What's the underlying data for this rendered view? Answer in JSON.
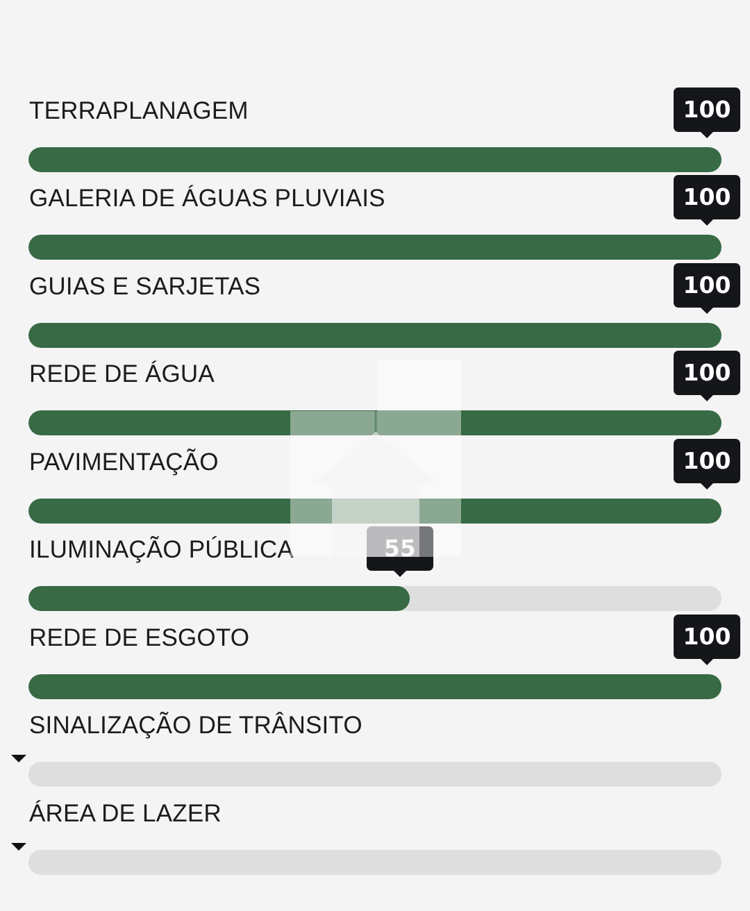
{
  "items": [
    {
      "label": "TERRAPLANAGEM",
      "value": 100,
      "value_text": "100"
    },
    {
      "label": "GALERIA DE ÁGUAS PLUVIAIS",
      "value": 100,
      "value_text": "100"
    },
    {
      "label": "GUIAS E SARJETAS",
      "value": 100,
      "value_text": "100"
    },
    {
      "label": "REDE DE ÁGUA",
      "value": 100,
      "value_text": "100"
    },
    {
      "label": "PAVIMENTAÇÃO",
      "value": 100,
      "value_text": "100"
    },
    {
      "label": "ILUMINAÇÃO PÚBLICA",
      "value": 55,
      "value_text": "55"
    },
    {
      "label": "REDE DE ESGOTO",
      "value": 100,
      "value_text": "100"
    },
    {
      "label": "SINALIZAÇÃO DE TRÂNSITO",
      "value": 0,
      "value_text": ""
    },
    {
      "label": "ÁREA DE LAZER",
      "value": 0,
      "value_text": ""
    }
  ],
  "colors": {
    "fill": "#376a45",
    "track": "#dedede",
    "badge": "#14161a",
    "background": "#f4f4f4"
  },
  "watermark": {
    "icon": "house-logo-icon"
  }
}
